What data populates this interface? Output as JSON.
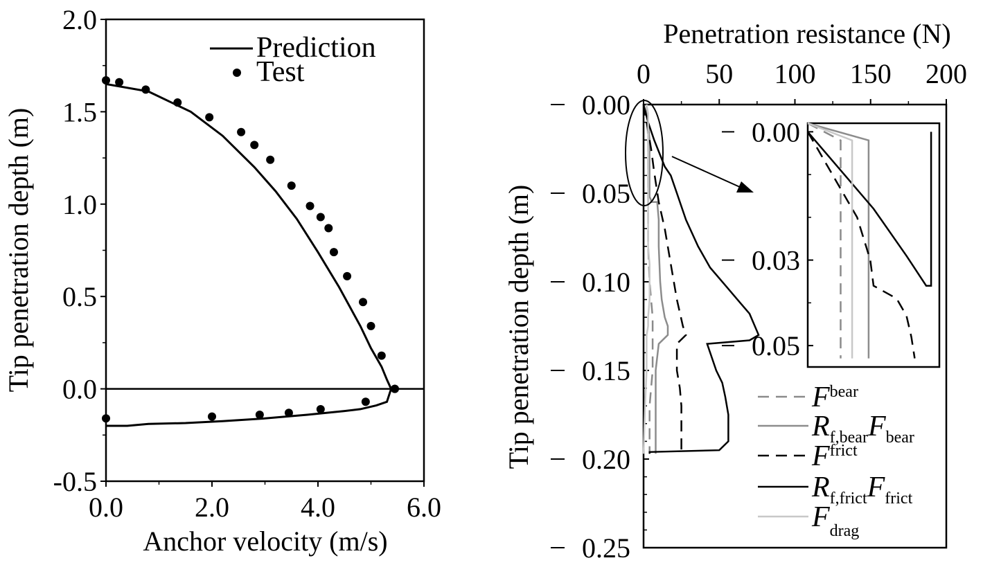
{
  "chart_data": [
    {
      "type": "line",
      "xlabel": "Anchor velocity (m/s)",
      "ylabel": "Tip penetration depth (m)",
      "xlim": [
        0,
        6.0
      ],
      "ylim": [
        -0.5,
        2.0
      ],
      "xticks": [
        0,
        2,
        4,
        6
      ],
      "xtick_labels": [
        "0.0",
        "2.0",
        "4.0",
        "6.0"
      ],
      "yticks": [
        -0.5,
        0,
        0.5,
        1.0,
        1.5,
        2.0
      ],
      "ytick_labels": [
        "-0.5",
        "0.0",
        "0.5",
        "1.0",
        "1.5",
        "2.0"
      ],
      "grid": false,
      "legend_position": "top-right",
      "series": [
        {
          "name": "Prediction",
          "style": "solid",
          "color": "#000000",
          "x": [
            0.0,
            0.8,
            1.6,
            2.2,
            2.8,
            3.2,
            3.6,
            4.0,
            4.4,
            4.8,
            5.0,
            5.2,
            5.3,
            5.38,
            5.3,
            5.1,
            4.8,
            4.5,
            3.8,
            3.0,
            2.2,
            1.5,
            0.8,
            0.4,
            0.0
          ],
          "y": [
            1.65,
            1.61,
            1.5,
            1.37,
            1.2,
            1.07,
            0.92,
            0.74,
            0.55,
            0.34,
            0.22,
            0.12,
            0.05,
            0.0,
            -0.07,
            -0.09,
            -0.11,
            -0.12,
            -0.14,
            -0.16,
            -0.175,
            -0.185,
            -0.19,
            -0.2,
            -0.2
          ]
        },
        {
          "name": "Test",
          "style": "markers",
          "color": "#000000",
          "x": [
            0.0,
            0.25,
            0.75,
            1.35,
            1.95,
            2.55,
            2.8,
            3.1,
            3.5,
            3.85,
            4.05,
            4.2,
            4.3,
            4.55,
            4.85,
            5.0,
            5.2,
            5.45,
            5.45,
            4.9,
            4.05,
            3.45,
            2.9,
            2.0,
            0.0
          ],
          "y": [
            1.67,
            1.66,
            1.62,
            1.55,
            1.47,
            1.39,
            1.32,
            1.24,
            1.1,
            0.99,
            0.93,
            0.87,
            0.74,
            0.61,
            0.47,
            0.34,
            0.18,
            0.0,
            0.0,
            -0.07,
            -0.11,
            -0.13,
            -0.14,
            -0.15,
            -0.16
          ]
        }
      ]
    },
    {
      "type": "line",
      "xlabel": "Penetration resistance (N)",
      "ylabel": "Tip penetration depth (m)",
      "xlim": [
        0,
        200
      ],
      "ylim": [
        0.25,
        0.0
      ],
      "xticks": [
        0,
        50,
        100,
        150,
        200
      ],
      "xtick_labels": [
        "0",
        "50",
        "100",
        "150",
        "200"
      ],
      "yticks": [
        0,
        0.05,
        0.1,
        0.15,
        0.2,
        0.25
      ],
      "ytick_labels": [
        "0.00",
        "0.05",
        "0.10",
        "0.15",
        "0.20",
        "0.25"
      ],
      "grid": false,
      "legend_position": "bottom-right",
      "series": [
        {
          "name": "F_bear",
          "legend": {
            "main": "F",
            "sub": "bear",
            "main2": "",
            "sub2": ""
          },
          "style": "dashed",
          "color": "#8a8a8a",
          "x": [
            2,
            2.5,
            3,
            3,
            3,
            3,
            4,
            5,
            6,
            6,
            6,
            4,
            4,
            4
          ],
          "y": [
            0.0,
            0.01,
            0.02,
            0.05,
            0.053,
            0.08,
            0.1,
            0.11,
            0.12,
            0.13,
            0.15,
            0.17,
            0.195,
            0.197
          ]
        },
        {
          "name": "R_f,bear F_bear",
          "legend": {
            "main": "R",
            "sub": "f,bear",
            "main2": "F",
            "sub2": "bear"
          },
          "style": "solid",
          "color": "#8c8c8c",
          "x": [
            2,
            3,
            4,
            4,
            5,
            5,
            9,
            10,
            10,
            11,
            12,
            14,
            16,
            16,
            10,
            8,
            8,
            8
          ],
          "y": [
            0.0,
            0.01,
            0.02,
            0.052,
            0.054,
            0.055,
            0.055,
            0.065,
            0.08,
            0.1,
            0.11,
            0.12,
            0.125,
            0.13,
            0.135,
            0.15,
            0.17,
            0.197
          ]
        },
        {
          "name": "F_frict",
          "legend": {
            "main": "F",
            "sub": "frict",
            "main2": "",
            "sub2": ""
          },
          "style": "dashed",
          "color": "#000000",
          "x": [
            0,
            2,
            5,
            7,
            10,
            14,
            18,
            22,
            26,
            28,
            22,
            22,
            24,
            25,
            25
          ],
          "y": [
            0.0,
            0.01,
            0.025,
            0.038,
            0.055,
            0.07,
            0.09,
            0.11,
            0.125,
            0.13,
            0.135,
            0.15,
            0.16,
            0.17,
            0.197
          ]
        },
        {
          "name": "R_f,frict F_frict",
          "legend": {
            "main": "R",
            "sub": "f,frict",
            "main2": "F",
            "sub2": "frict"
          },
          "style": "solid",
          "color": "#000000",
          "x": [
            0,
            3,
            7,
            14,
            18,
            22,
            28,
            36,
            44,
            54,
            64,
            70,
            76,
            70,
            42,
            48,
            52,
            54,
            56,
            56,
            56,
            50,
            4,
            4
          ],
          "y": [
            0.0,
            0.01,
            0.02,
            0.035,
            0.04,
            0.05,
            0.065,
            0.08,
            0.092,
            0.102,
            0.112,
            0.118,
            0.13,
            0.133,
            0.135,
            0.15,
            0.157,
            0.165,
            0.175,
            0.185,
            0.19,
            0.195,
            0.196,
            0.197
          ]
        },
        {
          "name": "F_drag",
          "legend": {
            "main": "F",
            "sub": "drag",
            "main2": "",
            "sub2": ""
          },
          "style": "solid",
          "color": "#c8c8c8",
          "x": [
            2,
            3,
            3,
            3,
            3,
            4,
            4,
            3,
            3,
            2,
            2,
            1,
            0
          ],
          "y": [
            0.0,
            0.005,
            0.02,
            0.05,
            0.08,
            0.09,
            0.11,
            0.12,
            0.125,
            0.13,
            0.15,
            0.17,
            0.197
          ]
        }
      ]
    },
    {
      "type": "line",
      "inset_of": 1,
      "xlim": [
        0,
        80
      ],
      "ylim": [
        0.055,
        -0.002
      ],
      "yticks": [
        0.0,
        0.03,
        0.05
      ],
      "ytick_labels": [
        "0.00",
        "0.03",
        "0.05"
      ],
      "grid": false,
      "series": [
        {
          "name": "F_bear",
          "style": "dashed",
          "color": "#8a8a8a",
          "x": [
            0,
            20,
            20,
            20
          ],
          "y": [
            -0.002,
            0.002,
            0.022,
            0.053
          ]
        },
        {
          "name": "R_f,bear F_bear",
          "style": "solid",
          "color": "#8c8c8c",
          "x": [
            0,
            37,
            37,
            37
          ],
          "y": [
            -0.002,
            0.002,
            0.03,
            0.053
          ]
        },
        {
          "name": "F_frict",
          "style": "dashed",
          "color": "#000000",
          "x": [
            0,
            15,
            30,
            38,
            40,
            54,
            60,
            63,
            65
          ],
          "y": [
            0.0,
            0.01,
            0.02,
            0.03,
            0.036,
            0.039,
            0.043,
            0.048,
            0.053
          ]
        },
        {
          "name": "R_f,frict F_frict",
          "style": "solid",
          "color": "#000000",
          "x": [
            0,
            20,
            40,
            60,
            72,
            75,
            75,
            75
          ],
          "y": [
            0.0,
            0.009,
            0.018,
            0.029,
            0.036,
            0.036,
            0.01,
            0.0
          ]
        },
        {
          "name": "F_drag",
          "style": "solid",
          "color": "#c8c8c8",
          "x": [
            0,
            27,
            27,
            27
          ],
          "y": [
            -0.002,
            0.002,
            0.03,
            0.053
          ]
        }
      ]
    }
  ]
}
